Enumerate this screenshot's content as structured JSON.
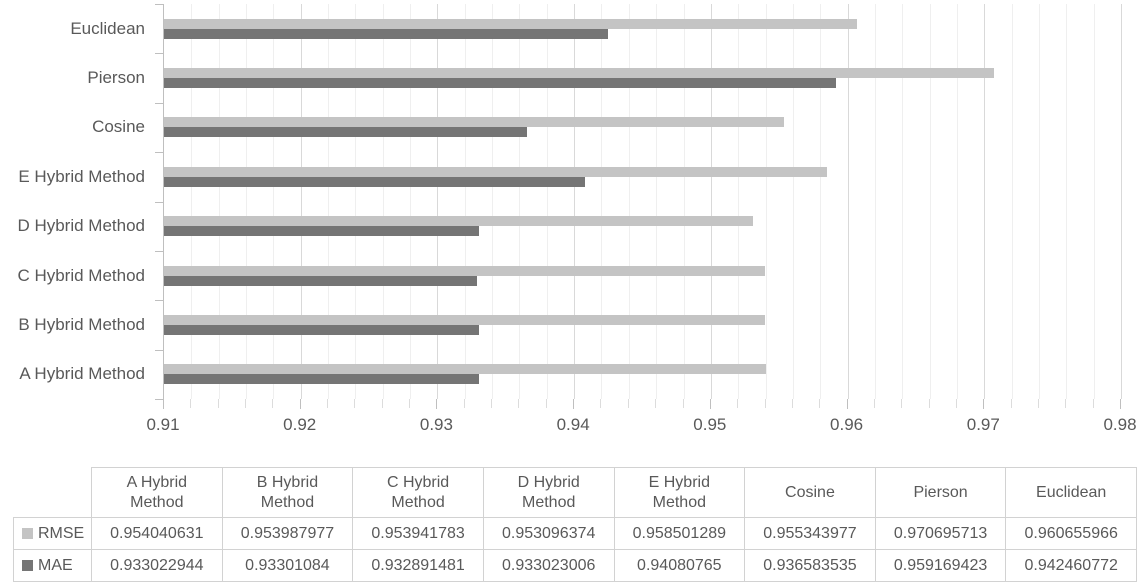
{
  "chart_data": {
    "type": "bar",
    "orientation": "horizontal",
    "title": "",
    "xlabel": "",
    "ylabel": "",
    "categories": [
      "A Hybrid Method",
      "B Hybrid Method",
      "C Hybrid Method",
      "D Hybrid Method",
      "E Hybrid Method",
      "Cosine",
      "Pierson",
      "Euclidean"
    ],
    "series": [
      {
        "name": "RMSE",
        "color": "#c4c4c4",
        "values": [
          "0.954040631",
          "0.953987977",
          "0.953941783",
          "0.953096374",
          "0.958501289",
          "0.955343977",
          "0.970695713",
          "0.960655966"
        ]
      },
      {
        "name": "MAE",
        "color": "#757575",
        "values": [
          "0.933022944",
          "0.93301084",
          "0.932891481",
          "0.933023006",
          "0.94080765",
          "0.936583535",
          "0.959169423",
          "0.942460772"
        ]
      }
    ],
    "axis": {
      "min": 0.91,
      "max": 0.98,
      "major_step": 0.01,
      "minor_step": 0.002,
      "tick_labels": [
        "0.91",
        "0.92",
        "0.93",
        "0.94",
        "0.95",
        "0.96",
        "0.97",
        "0.98"
      ]
    },
    "grid": "vertical minor and major gridlines on",
    "legend_position": "data-table keys at left of table rows"
  },
  "table": {
    "column_headers": [
      "A Hybrid Method",
      "B Hybrid Method",
      "C Hybrid Method",
      "D Hybrid Method",
      "E Hybrid Method",
      "Cosine",
      "Pierson",
      "Euclidean"
    ],
    "rows": [
      {
        "label": "RMSE",
        "swatch_color": "#c4c4c4",
        "values": [
          "0.954040631",
          "0.953987977",
          "0.953941783",
          "0.953096374",
          "0.958501289",
          "0.955343977",
          "0.970695713",
          "0.960655966"
        ]
      },
      {
        "label": "MAE",
        "swatch_color": "#757575",
        "values": [
          "0.933022944",
          "0.93301084",
          "0.932891481",
          "0.933023006",
          "0.94080765",
          "0.936583535",
          "0.959169423",
          "0.942460772"
        ]
      }
    ]
  },
  "colors": {
    "background": "#ffffff",
    "bar_rmse": "#c4c4c4",
    "bar_mae": "#757575",
    "text": "#595959",
    "gridline_minor": "#efefef",
    "gridline_major": "#d9d9d9",
    "axis_line": "#bfbfbf",
    "table_border": "#d2d2d2"
  }
}
